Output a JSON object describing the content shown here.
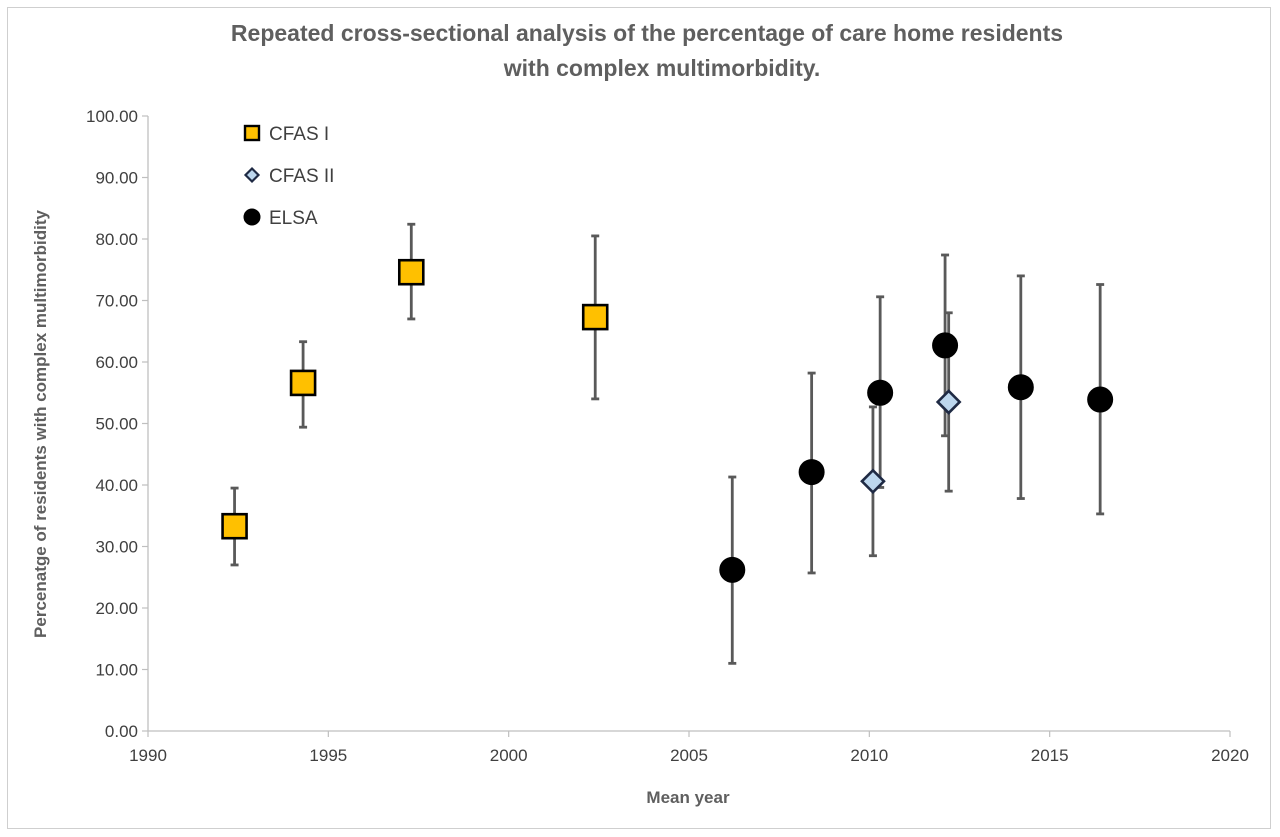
{
  "chart_data": {
    "type": "scatter",
    "title_lines": [
      "Repeated cross-sectional analysis of the percentage of care home residents",
      "with complex multimorbidity."
    ],
    "xlabel": "Mean year",
    "ylabel": "Percenatge of residents with complex multimorbidity",
    "xlim": [
      1990,
      2020
    ],
    "ylim": [
      0,
      100
    ],
    "x_ticks": [
      1990,
      1995,
      2000,
      2005,
      2010,
      2015,
      2020
    ],
    "y_ticks": [
      "0.00",
      "10.00",
      "20.00",
      "30.00",
      "40.00",
      "50.00",
      "60.00",
      "70.00",
      "80.00",
      "90.00",
      "100.00"
    ],
    "y_tick_values": [
      0,
      10,
      20,
      30,
      40,
      50,
      60,
      70,
      80,
      90,
      100
    ],
    "grid": false,
    "legend_position": "top-left",
    "series": [
      {
        "name": "CFAS I",
        "marker": "square",
        "color": "#FFC000",
        "stroke": "#000000",
        "points": [
          {
            "x": 1992.4,
            "y": 33.3,
            "low": 27.0,
            "high": 39.5
          },
          {
            "x": 1994.3,
            "y": 56.6,
            "low": 49.4,
            "high": 63.3
          },
          {
            "x": 1997.3,
            "y": 74.6,
            "low": 67.0,
            "high": 82.4
          },
          {
            "x": 2002.4,
            "y": 67.3,
            "low": 54.0,
            "high": 80.5
          }
        ]
      },
      {
        "name": "CFAS II",
        "marker": "diamond",
        "color": "#BDD7EE",
        "stroke": "#1f2a44",
        "points": [
          {
            "x": 2010.1,
            "y": 40.6,
            "low": 28.5,
            "high": 52.7
          },
          {
            "x": 2012.2,
            "y": 53.5,
            "low": 39.0,
            "high": 68.0
          }
        ]
      },
      {
        "name": "ELSA",
        "marker": "circle",
        "color": "#000000",
        "stroke": "#000000",
        "points": [
          {
            "x": 2006.2,
            "y": 26.2,
            "low": 11.0,
            "high": 41.3
          },
          {
            "x": 2008.4,
            "y": 42.1,
            "low": 25.7,
            "high": 58.2
          },
          {
            "x": 2010.3,
            "y": 55.0,
            "low": 39.6,
            "high": 70.6
          },
          {
            "x": 2012.1,
            "y": 62.7,
            "low": 48.0,
            "high": 77.4
          },
          {
            "x": 2014.2,
            "y": 55.9,
            "low": 37.8,
            "high": 74.0
          },
          {
            "x": 2016.4,
            "y": 53.9,
            "low": 35.3,
            "high": 72.6
          }
        ]
      }
    ],
    "error_bar_color": "#595959"
  }
}
